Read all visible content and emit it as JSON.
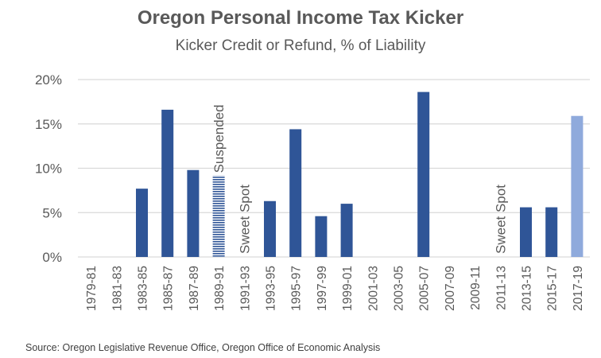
{
  "chart_data": {
    "type": "bar",
    "title": "Oregon Personal Income Tax Kicker",
    "subtitle": "Kicker Credit or Refund, % of Liability",
    "xlabel": "",
    "ylabel": "",
    "ylim": [
      0,
      20
    ],
    "yticks": [
      0,
      5,
      10,
      15,
      20
    ],
    "ytick_labels": [
      "0%",
      "5%",
      "10%",
      "15%",
      "20%"
    ],
    "grid": true,
    "categories": [
      "1979-81",
      "1981-83",
      "1983-85",
      "1985-87",
      "1987-89",
      "1989-91",
      "1991-93",
      "1993-95",
      "1995-97",
      "1997-99",
      "1999-01",
      "2001-03",
      "2003-05",
      "2005-07",
      "2007-09",
      "2009-11",
      "2011-13",
      "2013-15",
      "2015-17",
      "2017-19"
    ],
    "values": [
      0,
      0,
      7.7,
      16.6,
      9.8,
      9.2,
      0,
      6.3,
      14.4,
      4.6,
      6.0,
      0,
      0,
      18.6,
      0,
      0,
      0,
      5.6,
      5.6,
      15.9
    ],
    "bar_styles": [
      "solid",
      "solid",
      "solid",
      "solid",
      "solid",
      "hatched",
      "solid",
      "solid",
      "solid",
      "solid",
      "solid",
      "solid",
      "solid",
      "solid",
      "solid",
      "solid",
      "solid",
      "solid",
      "solid",
      "projected"
    ],
    "colors": {
      "solid": "#2F5597",
      "projected": "#8FAADC",
      "grid": "#D9D9D9",
      "text": "#595959"
    },
    "annotations": [
      {
        "text": "Suspended",
        "category": "1989-91"
      },
      {
        "text": "Sweet Spot",
        "category": "1991-93"
      },
      {
        "text": "Sweet Spot",
        "category": "2011-13"
      }
    ],
    "source": "Source: Oregon Legislative Revenue Office, Oregon Office of Economic Analysis"
  }
}
